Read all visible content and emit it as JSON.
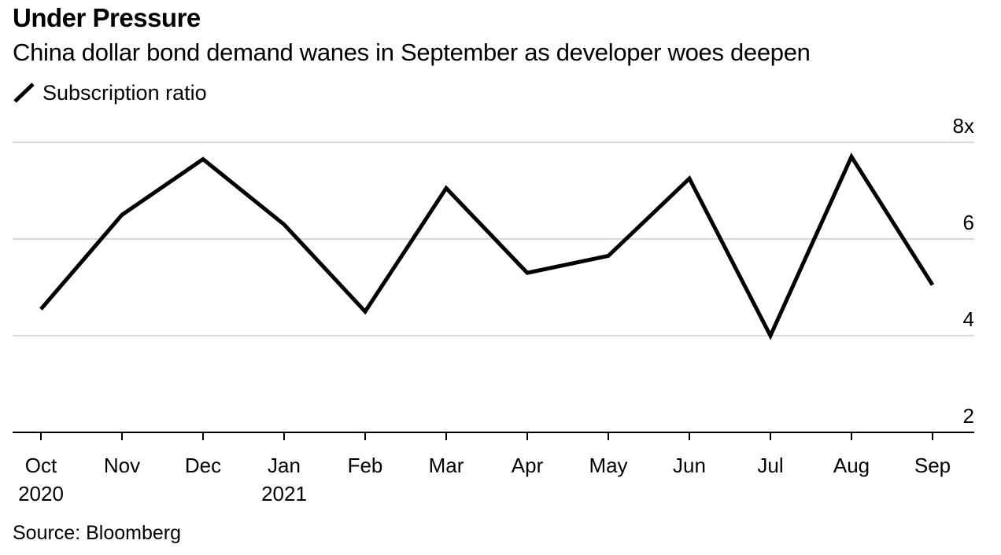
{
  "header": {
    "title": "Under Pressure",
    "subtitle": "China dollar bond demand wanes in September as developer woes deepen"
  },
  "legend": {
    "label": "Subscription ratio",
    "icon": "line-swatch-icon"
  },
  "footer": {
    "source": "Source: Bloomberg"
  },
  "colors": {
    "line": "#000000",
    "grid": "#d9d9d9",
    "axis": "#000000"
  },
  "chart_data": {
    "type": "line",
    "categories": [
      "Oct",
      "Nov",
      "Dec",
      "Jan",
      "Feb",
      "Mar",
      "Apr",
      "May",
      "Jun",
      "Jul",
      "Aug",
      "Sep"
    ],
    "category_sublabels": [
      "2020",
      "",
      "",
      "2021",
      "",
      "",
      "",
      "",
      "",
      "",
      "",
      ""
    ],
    "series": [
      {
        "name": "Subscription ratio",
        "values": [
          4.55,
          6.5,
          7.65,
          6.3,
          4.5,
          7.05,
          5.3,
          5.65,
          7.25,
          4.0,
          7.7,
          5.05
        ]
      }
    ],
    "y_ticks": [
      "2",
      "4",
      "6",
      "8x"
    ],
    "y_tick_values": [
      2,
      4,
      6,
      8
    ],
    "ylim": [
      2,
      8
    ],
    "y_axis_position": "right",
    "grid": true,
    "legend_position": "top-left"
  }
}
